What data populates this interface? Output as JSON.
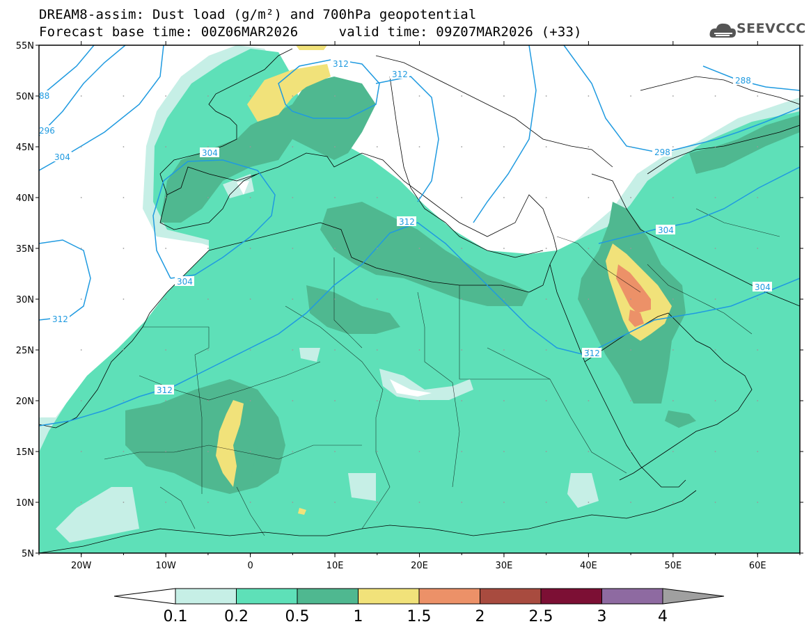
{
  "header": {
    "title_line1": "DREAM8-assim: Dust load (g/m²) and 700hPa geopotential",
    "title_line2": "Forecast base time: 00Z06MAR2026     valid time: 09Z07MAR2026 (+33)",
    "logo_text": "SEEVCCC"
  },
  "map": {
    "lon_range": [
      -25,
      65
    ],
    "lat_range": [
      5,
      55
    ],
    "lat_labels": [
      "55N",
      "50N",
      "45N",
      "40N",
      "35N",
      "30N",
      "25N",
      "20N",
      "15N",
      "10N",
      "5N"
    ],
    "lon_labels": [
      "20W",
      "10W",
      "0",
      "10E",
      "20E",
      "30E",
      "40E",
      "50E",
      "60E"
    ],
    "contour_labels": [
      "312",
      "312",
      "288",
      "88",
      "296",
      "304",
      "304",
      "304",
      "304",
      "312",
      "312",
      "312",
      "312",
      "298",
      "304",
      "312"
    ]
  },
  "legend": {
    "ticks": [
      "0.1",
      "0.2",
      "0.5",
      "1",
      "1.5",
      "2",
      "2.5",
      "3",
      "4"
    ],
    "colors": [
      "#ffffff",
      "#c6efe6",
      "#5ee0b8",
      "#4fb890",
      "#f1e27a",
      "#ec9168",
      "#a84b3f",
      "#7c0f34",
      "#8e6aa1",
      "#a0a0a0"
    ]
  }
}
